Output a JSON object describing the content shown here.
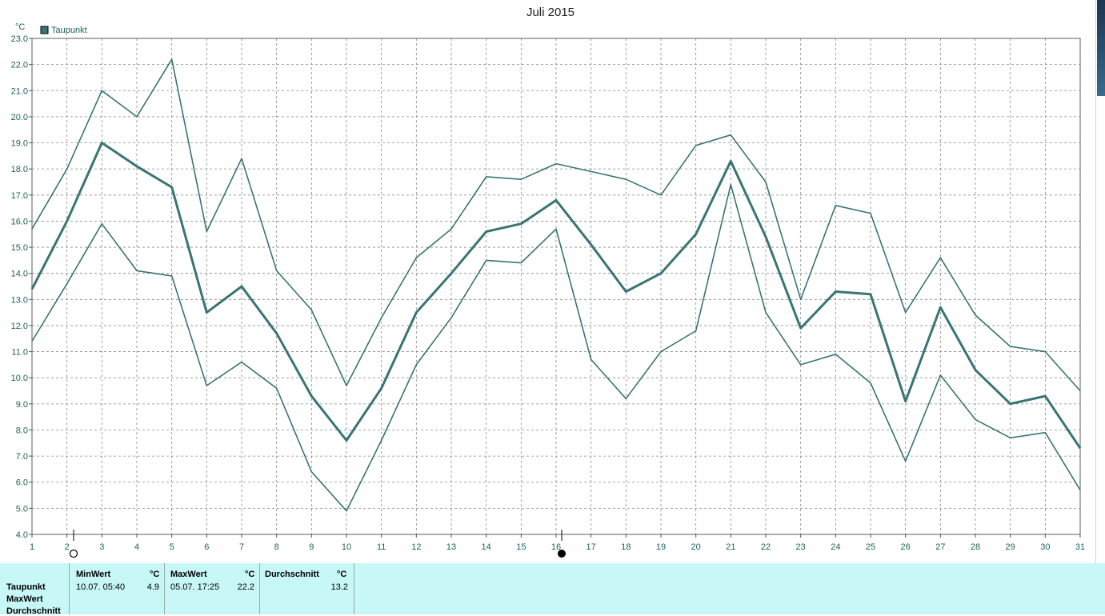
{
  "chart_data": {
    "type": "line",
    "title": "Juli 2015",
    "ylabel": "°C",
    "xlabel": "",
    "x": [
      1,
      2,
      3,
      4,
      5,
      6,
      7,
      8,
      9,
      10,
      11,
      12,
      13,
      14,
      15,
      16,
      17,
      18,
      19,
      20,
      21,
      22,
      23,
      24,
      25,
      26,
      27,
      28,
      29,
      30,
      31
    ],
    "ylim": [
      4.0,
      23.0
    ],
    "yticks": [
      "4.0",
      "5.0",
      "6.0",
      "7.0",
      "8.0",
      "9.0",
      "10.0",
      "11.0",
      "12.0",
      "13.0",
      "14.0",
      "15.0",
      "16.0",
      "17.0",
      "18.0",
      "19.0",
      "20.0",
      "21.0",
      "22.0",
      "23.0"
    ],
    "grid": true,
    "legend": [
      {
        "name": "Taupunkt",
        "position": "top-left"
      }
    ],
    "series": [
      {
        "name": "Taupunkt",
        "role": "max",
        "values": [
          15.7,
          18.0,
          21.0,
          20.0,
          22.2,
          15.6,
          18.4,
          14.1,
          12.6,
          9.7,
          12.3,
          14.6,
          15.7,
          17.7,
          17.6,
          18.2,
          17.9,
          17.6,
          17.0,
          18.9,
          19.3,
          17.5,
          13.0,
          16.6,
          16.3,
          12.5,
          14.6,
          12.4,
          11.2,
          11.0,
          9.5
        ]
      },
      {
        "name": "Taupunkt",
        "role": "avg",
        "values": [
          13.4,
          16.0,
          19.0,
          18.1,
          17.3,
          12.5,
          13.5,
          11.7,
          9.3,
          7.6,
          9.6,
          12.5,
          14.0,
          15.6,
          15.9,
          16.8,
          15.1,
          13.3,
          14.0,
          15.5,
          18.3,
          15.4,
          11.9,
          13.3,
          13.2,
          9.1,
          12.7,
          10.3,
          9.0,
          9.3,
          7.3
        ]
      },
      {
        "name": "Taupunkt",
        "role": "min",
        "values": [
          11.4,
          13.6,
          15.9,
          14.1,
          13.9,
          9.7,
          10.6,
          9.6,
          6.4,
          4.9,
          7.6,
          10.5,
          12.3,
          14.5,
          14.4,
          15.7,
          10.7,
          9.2,
          11.0,
          11.8,
          17.4,
          12.5,
          10.5,
          10.9,
          9.8,
          6.8,
          10.1,
          8.4,
          7.7,
          7.9,
          5.7
        ]
      }
    ],
    "line_color": "#3a7474"
  },
  "stats": {
    "row_labels": [
      "Taupunkt",
      "MaxWert",
      "Durchschnitt"
    ],
    "min": {
      "header": "MinWert",
      "unit": "°C",
      "time": "10.07.  05:40",
      "value": "4.9"
    },
    "max": {
      "header": "MaxWert",
      "unit": "°C",
      "time": "05.07.  17:25",
      "value": "22.2"
    },
    "avg": {
      "header": "Durchschnitt",
      "unit": "°C",
      "value": "13.2"
    }
  },
  "colors": {
    "panel_bg": "#c8f7f7",
    "axis_text": "#1e5f5f",
    "grid": "#888888"
  }
}
